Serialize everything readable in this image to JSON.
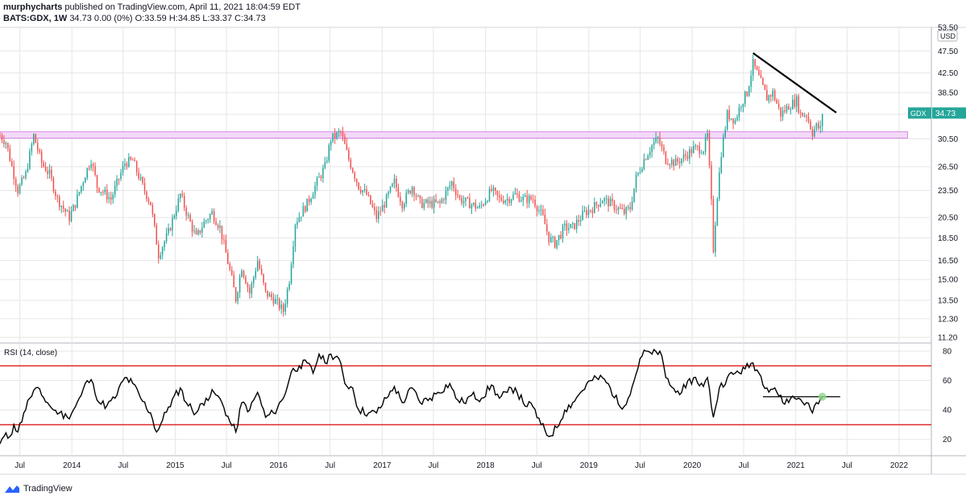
{
  "header": {
    "author": "murphycharts",
    "published_text": "published on TradingView.com, April 11, 2021 18:04:59 EDT",
    "symbol_line": "BATS:GDX, 1W",
    "ohlc_text": "34.73 0.00 (0%) O:33.59 H:34.85 L:33.37 C:34.73"
  },
  "footer": {
    "brand": "TradingView",
    "logo_icon": "tradingview-logo-icon"
  },
  "colors": {
    "up": "#26a69a",
    "down": "#ef5350",
    "trendline": "#000000",
    "resistance_zone_fill": "#f3d9f8",
    "resistance_zone_border": "#d98be6",
    "rsi_line": "#000000",
    "rsi_band": "#e0262a",
    "rsi_marker": "#8fd989",
    "grid": "#e6e6e6"
  },
  "chart_data": [
    {
      "type": "candlestick",
      "title": "BATS:GDX, 1W",
      "currency_badge": "USD",
      "last_price_badge": {
        "symbol": "GDX",
        "value": "34.73"
      },
      "yscale": "log",
      "ylim": [
        11.2,
        53.5
      ],
      "y_ticks": [
        "53.50",
        "47.50",
        "42.50",
        "38.50",
        "34.50",
        "30.50",
        "26.50",
        "23.50",
        "20.50",
        "18.50",
        "16.50",
        "15.00",
        "13.50",
        "12.30",
        "11.20"
      ],
      "x_ticks": [
        "Jul",
        "2014",
        "Jul",
        "2015",
        "Jul",
        "2016",
        "Jul",
        "2017",
        "Jul",
        "2018",
        "Jul",
        "2019",
        "Jul",
        "2020",
        "Jul",
        "2021",
        "Jul",
        "2022"
      ],
      "x_tick_dates": [
        "2013-07-01",
        "2014-01-01",
        "2014-07-01",
        "2015-01-01",
        "2015-07-01",
        "2016-01-01",
        "2016-07-01",
        "2017-01-01",
        "2017-07-01",
        "2018-01-01",
        "2018-07-01",
        "2019-01-01",
        "2019-07-01",
        "2020-01-01",
        "2020-07-01",
        "2021-01-01",
        "2021-07-01",
        "2022-01-01"
      ],
      "x_range": [
        "2013-04-22",
        "2022-04-25"
      ],
      "price_path": [
        [
          "2013-04-22",
          31.0
        ],
        [
          "2013-05-13",
          30.0
        ],
        [
          "2013-06-03",
          26.5
        ],
        [
          "2013-06-24",
          23.5
        ],
        [
          "2013-07-22",
          25.5
        ],
        [
          "2013-08-19",
          31.0
        ],
        [
          "2013-09-16",
          27.0
        ],
        [
          "2013-10-14",
          25.5
        ],
        [
          "2013-11-11",
          22.5
        ],
        [
          "2013-12-23",
          20.5
        ],
        [
          "2014-01-13",
          22.0
        ],
        [
          "2014-02-17",
          25.5
        ],
        [
          "2014-03-10",
          27.5
        ],
        [
          "2014-03-31",
          24.0
        ],
        [
          "2014-05-19",
          22.5
        ],
        [
          "2014-07-07",
          27.0
        ],
        [
          "2014-08-04",
          27.3
        ],
        [
          "2014-09-08",
          24.0
        ],
        [
          "2014-10-06",
          22.0
        ],
        [
          "2014-11-03",
          17.0
        ],
        [
          "2014-12-08",
          19.0
        ],
        [
          "2015-01-19",
          23.0
        ],
        [
          "2015-02-16",
          20.5
        ],
        [
          "2015-03-16",
          18.5
        ],
        [
          "2015-04-13",
          20.0
        ],
        [
          "2015-05-11",
          21.0
        ],
        [
          "2015-06-08",
          19.5
        ],
        [
          "2015-07-20",
          15.0
        ],
        [
          "2015-08-03",
          13.6
        ],
        [
          "2015-08-24",
          16.0
        ],
        [
          "2015-09-21",
          14.0
        ],
        [
          "2015-10-19",
          16.5
        ],
        [
          "2015-11-16",
          14.0
        ],
        [
          "2015-12-14",
          13.6
        ],
        [
          "2016-01-18",
          12.8
        ],
        [
          "2016-02-08",
          15.0
        ],
        [
          "2016-02-29",
          20.0
        ],
        [
          "2016-04-11",
          22.0
        ],
        [
          "2016-05-16",
          24.5
        ],
        [
          "2016-06-13",
          26.5
        ],
        [
          "2016-07-04",
          30.5
        ],
        [
          "2016-08-08",
          31.5
        ],
        [
          "2016-09-05",
          27.5
        ],
        [
          "2016-10-10",
          24.0
        ],
        [
          "2016-11-07",
          23.0
        ],
        [
          "2016-12-12",
          20.5
        ],
        [
          "2017-01-09",
          22.0
        ],
        [
          "2017-02-13",
          24.5
        ],
        [
          "2017-03-13",
          22.0
        ],
        [
          "2017-04-17",
          24.0
        ],
        [
          "2017-05-15",
          22.0
        ],
        [
          "2017-06-19",
          22.0
        ],
        [
          "2017-07-24",
          22.0
        ],
        [
          "2017-09-04",
          24.5
        ],
        [
          "2017-10-02",
          22.5
        ],
        [
          "2017-11-06",
          22.0
        ],
        [
          "2017-12-11",
          21.5
        ],
        [
          "2018-01-22",
          23.5
        ],
        [
          "2018-02-19",
          22.5
        ],
        [
          "2018-03-19",
          22.5
        ],
        [
          "2018-04-16",
          23.0
        ],
        [
          "2018-05-14",
          22.5
        ],
        [
          "2018-06-18",
          22.5
        ],
        [
          "2018-07-23",
          20.5
        ],
        [
          "2018-08-13",
          18.5
        ],
        [
          "2018-09-03",
          18.0
        ],
        [
          "2018-10-08",
          19.5
        ],
        [
          "2018-11-05",
          19.5
        ],
        [
          "2018-12-17",
          21.0
        ],
        [
          "2019-01-14",
          21.5
        ],
        [
          "2019-02-18",
          22.5
        ],
        [
          "2019-03-18",
          22.0
        ],
        [
          "2019-05-06",
          21.0
        ],
        [
          "2019-05-27",
          21.5
        ],
        [
          "2019-06-17",
          25.0
        ],
        [
          "2019-07-15",
          27.5
        ],
        [
          "2019-08-12",
          29.5
        ],
        [
          "2019-09-02",
          30.5
        ],
        [
          "2019-09-30",
          27.5
        ],
        [
          "2019-11-04",
          27.0
        ],
        [
          "2019-12-09",
          28.0
        ],
        [
          "2020-01-06",
          29.0
        ],
        [
          "2020-02-10",
          29.0
        ],
        [
          "2020-02-24",
          31.0
        ],
        [
          "2020-03-09",
          22.0
        ],
        [
          "2020-03-16",
          17.5
        ],
        [
          "2020-03-30",
          23.0
        ],
        [
          "2020-04-13",
          28.5
        ],
        [
          "2020-05-04",
          34.5
        ],
        [
          "2020-06-01",
          33.5
        ],
        [
          "2020-06-22",
          36.5
        ],
        [
          "2020-07-13",
          38.5
        ],
        [
          "2020-08-03",
          44.5
        ],
        [
          "2020-08-24",
          41.5
        ],
        [
          "2020-09-21",
          37.5
        ],
        [
          "2020-10-12",
          38.5
        ],
        [
          "2020-11-09",
          34.5
        ],
        [
          "2020-12-07",
          36.0
        ],
        [
          "2021-01-04",
          37.0
        ],
        [
          "2021-01-18",
          34.5
        ],
        [
          "2021-02-08",
          34.5
        ],
        [
          "2021-03-01",
          31.5
        ],
        [
          "2021-03-15",
          32.5
        ],
        [
          "2021-03-29",
          32.0
        ],
        [
          "2021-04-05",
          34.73
        ]
      ],
      "resistance_zone": {
        "low": 30.6,
        "high": 31.6,
        "from": "2013-04-22",
        "to": "2022-01-31"
      },
      "trendline": {
        "from": [
          "2020-08-03",
          47.0
        ],
        "to": [
          "2021-05-24",
          34.8
        ]
      }
    },
    {
      "type": "line",
      "title": "RSI (14, close)",
      "ylim": [
        10,
        85
      ],
      "y_ticks": [
        20,
        40,
        60,
        80
      ],
      "bands": [
        30,
        70
      ],
      "rsi_path": [
        [
          "2013-04-22",
          17
        ],
        [
          "2013-05-06",
          22
        ],
        [
          "2013-05-27",
          22
        ],
        [
          "2013-06-10",
          30
        ],
        [
          "2013-06-24",
          25
        ],
        [
          "2013-07-15",
          38
        ],
        [
          "2013-08-05",
          48
        ],
        [
          "2013-08-26",
          55
        ],
        [
          "2013-09-16",
          50
        ],
        [
          "2013-10-07",
          45
        ],
        [
          "2013-10-28",
          40
        ],
        [
          "2013-11-18",
          38
        ],
        [
          "2013-12-16",
          35
        ],
        [
          "2014-01-06",
          40
        ],
        [
          "2014-02-03",
          50
        ],
        [
          "2014-02-24",
          60
        ],
        [
          "2014-03-17",
          58
        ],
        [
          "2014-04-07",
          45
        ],
        [
          "2014-05-05",
          43
        ],
        [
          "2014-06-02",
          48
        ],
        [
          "2014-07-07",
          62
        ],
        [
          "2014-08-04",
          58
        ],
        [
          "2014-09-01",
          48
        ],
        [
          "2014-10-06",
          38
        ],
        [
          "2014-10-27",
          25
        ],
        [
          "2014-11-10",
          30
        ],
        [
          "2014-12-08",
          42
        ],
        [
          "2015-01-19",
          55
        ],
        [
          "2015-02-09",
          45
        ],
        [
          "2015-03-16",
          38
        ],
        [
          "2015-04-20",
          48
        ],
        [
          "2015-05-18",
          52
        ],
        [
          "2015-06-15",
          45
        ],
        [
          "2015-07-13",
          32
        ],
        [
          "2015-08-03",
          25
        ],
        [
          "2015-08-24",
          45
        ],
        [
          "2015-09-21",
          40
        ],
        [
          "2015-10-19",
          52
        ],
        [
          "2015-11-16",
          35
        ],
        [
          "2015-12-14",
          38
        ],
        [
          "2016-01-18",
          48
        ],
        [
          "2016-02-15",
          66
        ],
        [
          "2016-03-14",
          70
        ],
        [
          "2016-04-11",
          72
        ],
        [
          "2016-05-02",
          65
        ],
        [
          "2016-05-23",
          78
        ],
        [
          "2016-06-13",
          72
        ],
        [
          "2016-07-04",
          78
        ],
        [
          "2016-08-01",
          75
        ],
        [
          "2016-08-22",
          58
        ],
        [
          "2016-09-19",
          55
        ],
        [
          "2016-10-10",
          40
        ],
        [
          "2016-11-14",
          38
        ],
        [
          "2016-12-12",
          38
        ],
        [
          "2017-01-16",
          48
        ],
        [
          "2017-02-13",
          56
        ],
        [
          "2017-03-13",
          45
        ],
        [
          "2017-04-17",
          55
        ],
        [
          "2017-05-15",
          45
        ],
        [
          "2017-06-19",
          48
        ],
        [
          "2017-07-17",
          52
        ],
        [
          "2017-08-28",
          58
        ],
        [
          "2017-09-18",
          48
        ],
        [
          "2017-10-16",
          45
        ],
        [
          "2017-11-13",
          50
        ],
        [
          "2017-12-18",
          48
        ],
        [
          "2018-01-22",
          57
        ],
        [
          "2018-02-19",
          48
        ],
        [
          "2018-03-19",
          52
        ],
        [
          "2018-04-16",
          55
        ],
        [
          "2018-05-14",
          45
        ],
        [
          "2018-06-18",
          42
        ],
        [
          "2018-07-16",
          30
        ],
        [
          "2018-08-13",
          22
        ],
        [
          "2018-09-10",
          28
        ],
        [
          "2018-10-08",
          40
        ],
        [
          "2018-11-05",
          45
        ],
        [
          "2018-12-03",
          52
        ],
        [
          "2019-01-07",
          60
        ],
        [
          "2019-02-18",
          62
        ],
        [
          "2019-03-18",
          55
        ],
        [
          "2019-04-22",
          42
        ],
        [
          "2019-05-20",
          48
        ],
        [
          "2019-06-10",
          60
        ],
        [
          "2019-07-01",
          75
        ],
        [
          "2019-07-22",
          80
        ],
        [
          "2019-08-12",
          78
        ],
        [
          "2019-09-09",
          80
        ],
        [
          "2019-09-30",
          62
        ],
        [
          "2019-11-04",
          52
        ],
        [
          "2019-12-09",
          55
        ],
        [
          "2020-01-06",
          62
        ],
        [
          "2020-02-10",
          56
        ],
        [
          "2020-02-24",
          62
        ],
        [
          "2020-03-16",
          35
        ],
        [
          "2020-04-06",
          55
        ],
        [
          "2020-05-04",
          62
        ],
        [
          "2020-06-01",
          65
        ],
        [
          "2020-07-06",
          68
        ],
        [
          "2020-08-03",
          72
        ],
        [
          "2020-08-24",
          65
        ],
        [
          "2020-09-21",
          55
        ],
        [
          "2020-10-19",
          55
        ],
        [
          "2020-11-16",
          45
        ],
        [
          "2020-12-14",
          48
        ],
        [
          "2021-01-11",
          48
        ],
        [
          "2021-02-08",
          45
        ],
        [
          "2021-03-01",
          38
        ],
        [
          "2021-03-15",
          45
        ],
        [
          "2021-04-05",
          48
        ]
      ],
      "horizontal_line": {
        "value": 49,
        "from": "2020-09-07",
        "to": "2021-06-07"
      },
      "marker": {
        "date": "2021-04-05",
        "value": 49
      }
    }
  ]
}
